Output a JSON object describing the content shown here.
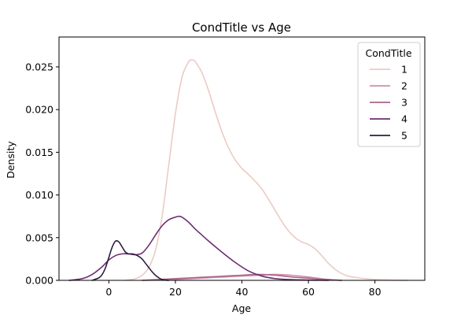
{
  "chart_data": {
    "type": "line",
    "title": "CondTitle vs Age",
    "xlabel": "Age",
    "ylabel": "Density",
    "xlim": [
      -15,
      95
    ],
    "ylim": [
      0,
      0.0285
    ],
    "xticks": [
      0,
      20,
      40,
      60,
      80
    ],
    "xtick_labels": [
      "0",
      "20",
      "40",
      "60",
      "80"
    ],
    "yticks": [
      0,
      0.005,
      0.01,
      0.015,
      0.02,
      0.025
    ],
    "ytick_labels": [
      "0.000",
      "0.005",
      "0.010",
      "0.015",
      "0.020",
      "0.025"
    ],
    "grid": false,
    "legend": {
      "title": "CondTitle",
      "position": "top-right"
    },
    "series": [
      {
        "name": "1",
        "color": "#ebcbc3",
        "x": [
          5,
          8,
          10,
          12,
          14,
          16,
          18,
          20,
          22,
          24,
          25,
          26,
          28,
          30,
          32,
          34,
          36,
          38,
          40,
          42,
          44,
          46,
          48,
          50,
          52,
          54,
          56,
          58,
          60,
          62,
          64,
          66,
          68,
          70,
          72,
          75,
          80,
          85,
          90
        ],
        "y": [
          0.0,
          0.0002,
          0.0006,
          0.0015,
          0.0035,
          0.0075,
          0.0135,
          0.0195,
          0.0238,
          0.0256,
          0.0258,
          0.0256,
          0.0243,
          0.0222,
          0.0197,
          0.0174,
          0.0155,
          0.0141,
          0.0131,
          0.0124,
          0.0116,
          0.0107,
          0.0095,
          0.0082,
          0.0069,
          0.0058,
          0.005,
          0.0045,
          0.0042,
          0.0037,
          0.0029,
          0.002,
          0.0013,
          0.0008,
          0.0005,
          0.0003,
          0.0001,
          3e-05,
          0.0
        ]
      },
      {
        "name": "2",
        "color": "#d18fa7",
        "x": [
          10,
          15,
          20,
          25,
          30,
          35,
          40,
          45,
          50,
          55,
          60,
          65,
          70
        ],
        "y": [
          0.0,
          5e-05,
          0.0001,
          0.0002,
          0.0003,
          0.0004,
          0.0005,
          0.0006,
          0.0007,
          0.0006,
          0.0004,
          0.00015,
          0.0
        ]
      },
      {
        "name": "3",
        "color": "#a8628f",
        "x": [
          10,
          15,
          20,
          25,
          30,
          35,
          40,
          45,
          50,
          55,
          60,
          65,
          70
        ],
        "y": [
          0.0,
          0.0001,
          0.0002,
          0.0003,
          0.0004,
          0.0005,
          0.0006,
          0.0007,
          0.0006,
          0.0004,
          0.00025,
          0.0001,
          0.0
        ]
      },
      {
        "name": "4",
        "color": "#6b3070",
        "x": [
          -12,
          -8,
          -5,
          -2,
          0,
          2,
          4,
          6,
          8,
          10,
          12,
          14,
          16,
          18,
          20,
          21,
          22,
          24,
          26,
          28,
          30,
          34,
          38,
          42,
          46,
          50,
          54,
          58,
          62,
          66
        ],
        "y": [
          0.0,
          0.0002,
          0.0007,
          0.0016,
          0.0024,
          0.0029,
          0.0031,
          0.0031,
          0.003,
          0.0032,
          0.0041,
          0.0053,
          0.0064,
          0.0071,
          0.0074,
          0.0075,
          0.0074,
          0.0068,
          0.006,
          0.0053,
          0.0046,
          0.0033,
          0.0021,
          0.0011,
          0.0005,
          0.0002,
          0.0001,
          5e-05,
          2e-05,
          0.0
        ]
      },
      {
        "name": "5",
        "color": "#2d1e3e",
        "x": [
          -5,
          -3,
          -2,
          -1,
          0,
          1,
          2,
          3,
          4,
          5,
          6,
          7,
          8,
          9,
          10,
          11,
          12,
          13,
          14,
          15,
          16,
          17,
          18
        ],
        "y": [
          0.0,
          0.0003,
          0.0007,
          0.0015,
          0.0027,
          0.0039,
          0.0046,
          0.0045,
          0.0039,
          0.0033,
          0.0031,
          0.0031,
          0.003,
          0.0028,
          0.0025,
          0.002,
          0.0015,
          0.001,
          0.0006,
          0.0003,
          0.0001,
          3e-05,
          0.0
        ]
      }
    ]
  }
}
